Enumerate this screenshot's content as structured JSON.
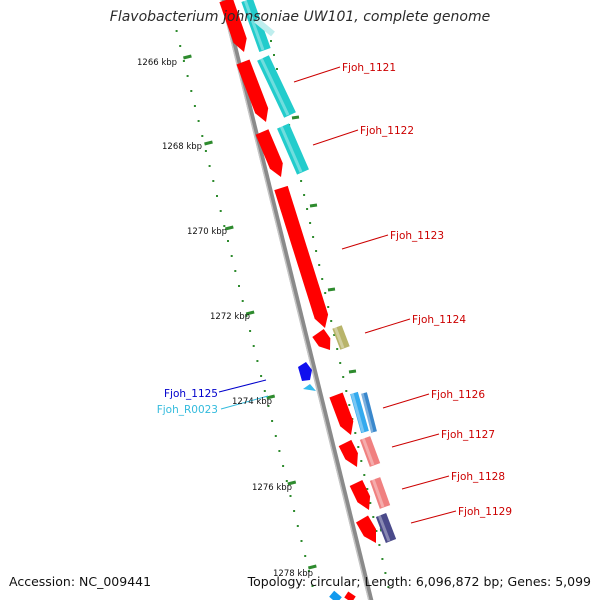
{
  "title": "Flavobacterium johnsoniae UW101, complete genome",
  "footer": {
    "accession": "Accession: NC_009441",
    "topology": "Topology: circular; Length: 6,096,872 bp; Genes: 5,099"
  },
  "scale_labels": [
    "1266 kbp",
    "1268 kbp",
    "1270 kbp",
    "1272 kbp",
    "1274 kbp",
    "1276 kbp",
    "1278 kbp"
  ],
  "genes": [
    {
      "label": "Fjoh_1121",
      "color": "#cc0000"
    },
    {
      "label": "Fjoh_1122",
      "color": "#cc0000"
    },
    {
      "label": "Fjoh_1123",
      "color": "#cc0000"
    },
    {
      "label": "Fjoh_1124",
      "color": "#cc0000"
    },
    {
      "label": "Fjoh_1125",
      "color": "#0000cc"
    },
    {
      "label": "Fjoh_R0023",
      "color": "#33bbdd"
    },
    {
      "label": "Fjoh_1126",
      "color": "#cc0000"
    },
    {
      "label": "Fjoh_1127",
      "color": "#cc0000"
    },
    {
      "label": "Fjoh_1128",
      "color": "#cc0000"
    },
    {
      "label": "Fjoh_1129",
      "color": "#cc0000"
    }
  ],
  "colors": {
    "backbone": "#8a8a8a",
    "tick": "#2e8b2e",
    "gene_red": "#ff0000",
    "cog_cyan": "#22cccc",
    "cog_olive": "#b8b46a",
    "cog_blue": "#3a88cc",
    "cog_pink": "#f08080",
    "cog_purple": "#4a4a8a",
    "rna_blue": "#1010ee",
    "trna_cyan": "#33bbee"
  }
}
